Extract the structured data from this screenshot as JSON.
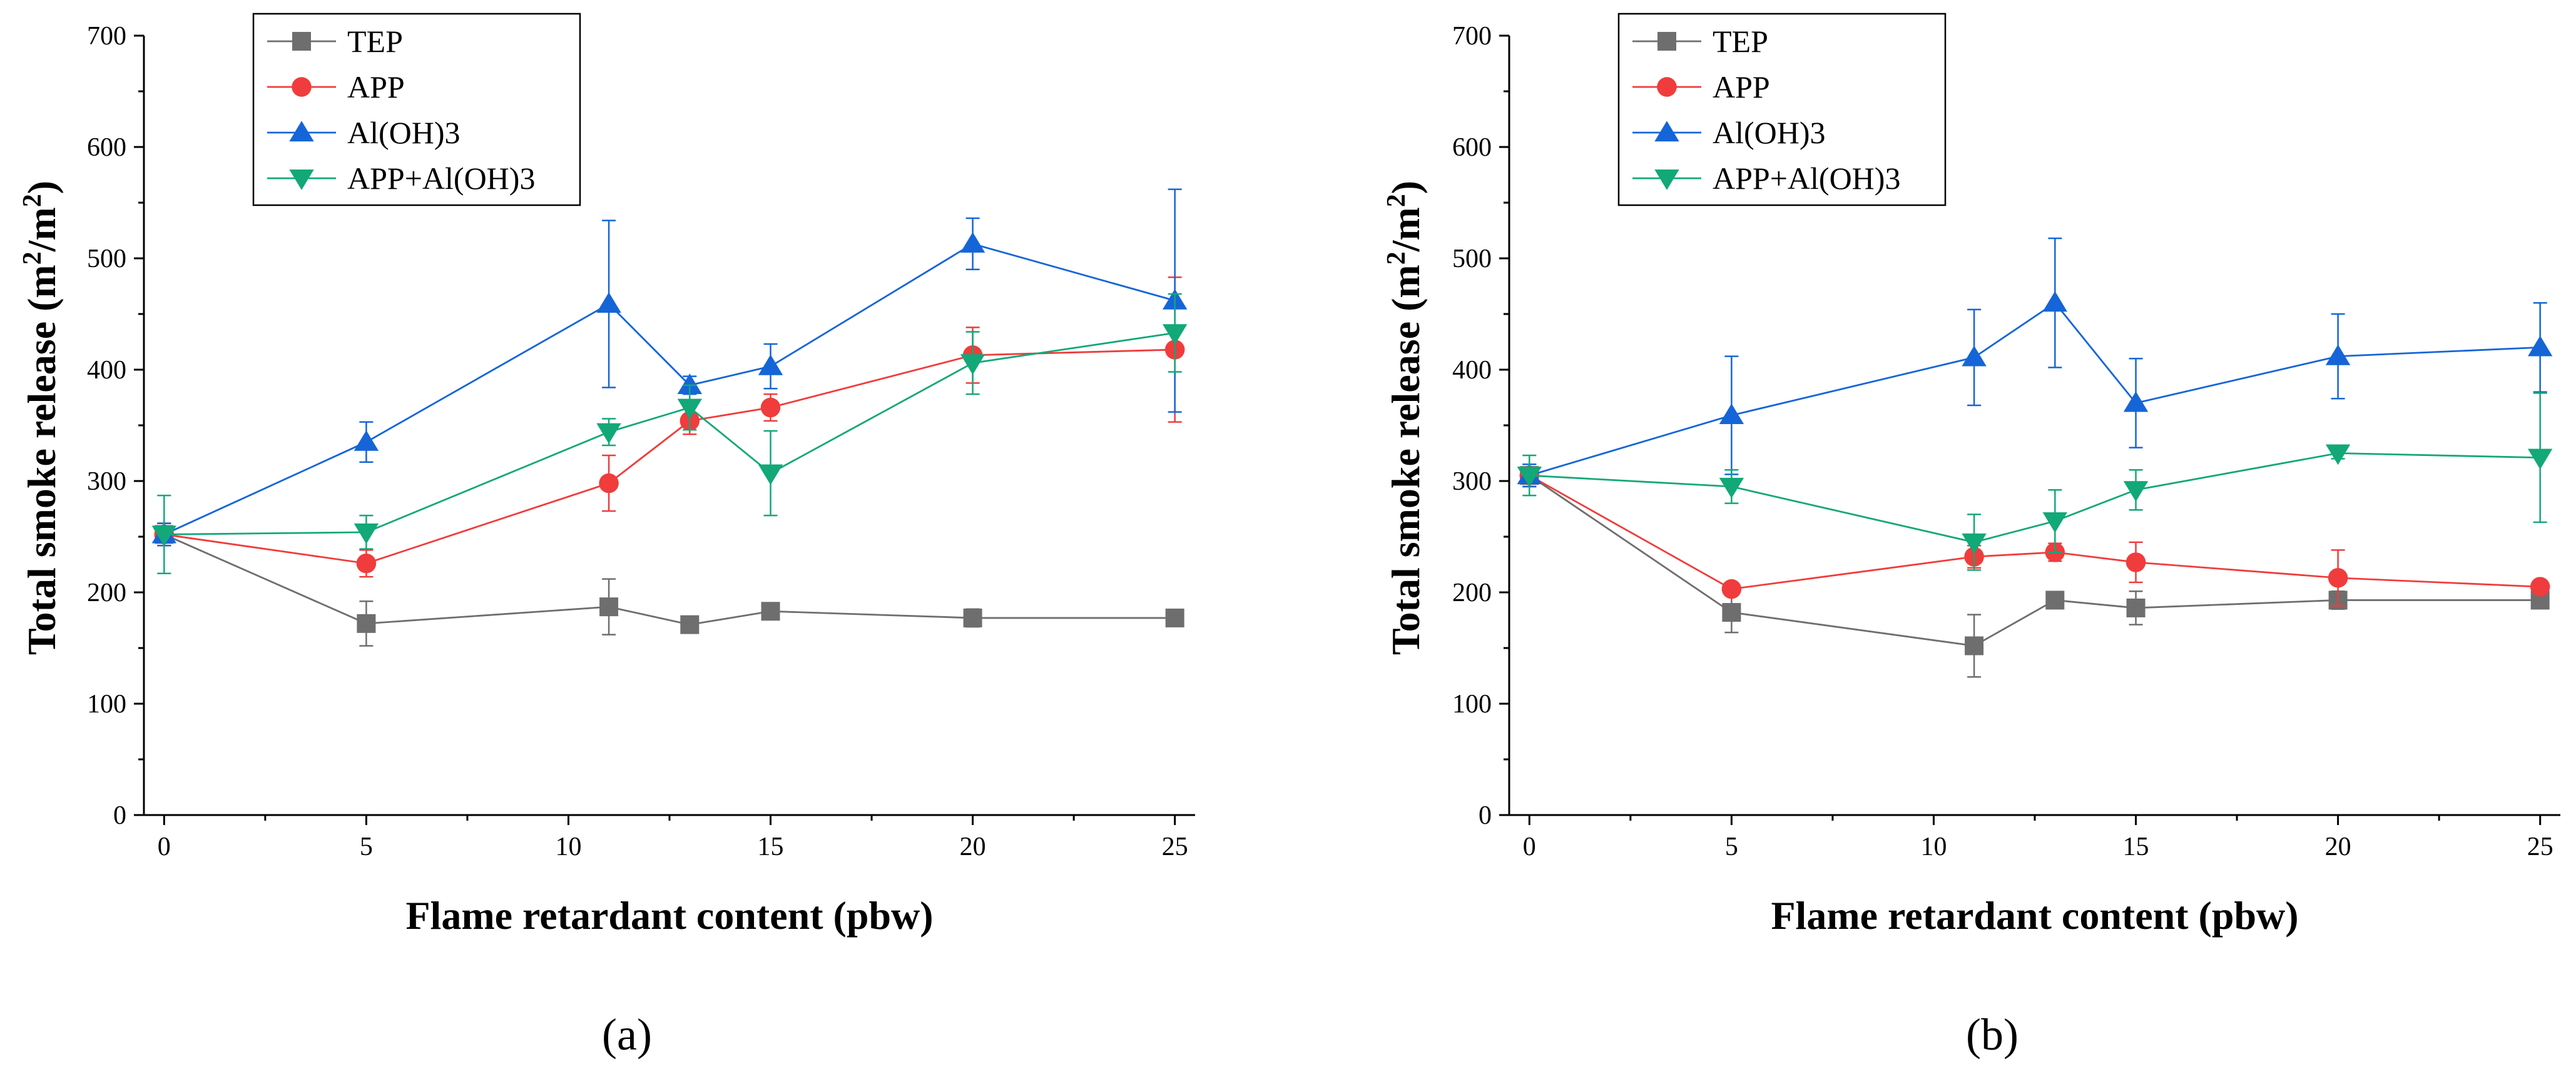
{
  "chart_data": [
    {
      "type": "line",
      "panel_label": "(a)",
      "xlabel": "Flame retardant content (pbw)",
      "ylabel_main": "Total smoke release (m",
      "ylabel_sup1": "2",
      "ylabel_mid": "/m",
      "ylabel_sup2": "2",
      "ylabel_end": ")",
      "xlim": [
        -0.5,
        25.5
      ],
      "ylim": [
        0,
        700
      ],
      "xticks": [
        "0",
        "5",
        "10",
        "15",
        "20",
        "25"
      ],
      "yticks": [
        "0",
        "100",
        "200",
        "300",
        "400",
        "500",
        "600",
        "700"
      ],
      "legend_position": "top-left",
      "x": [
        0,
        5,
        11,
        13,
        15,
        20,
        25
      ],
      "series": [
        {
          "name": "TEP",
          "color": "#6e6e6e",
          "marker": "square",
          "values": [
            252,
            172,
            187,
            171,
            183,
            177,
            177
          ],
          "errors": [
            10,
            20,
            25,
            5,
            5,
            8,
            5
          ]
        },
        {
          "name": "APP",
          "color": "#f03c3c",
          "marker": "circle",
          "values": [
            252,
            226,
            298,
            354,
            366,
            413,
            418
          ],
          "errors": [
            10,
            12,
            25,
            12,
            12,
            25,
            65
          ]
        },
        {
          "name": "Al(OH)3",
          "color": "#1565d8",
          "marker": "triangle-up",
          "values": [
            252,
            335,
            459,
            386,
            403,
            513,
            462
          ],
          "errors": [
            10,
            18,
            75,
            8,
            20,
            23,
            100
          ]
        },
        {
          "name": "APP+Al(OH)3",
          "color": "#12a878",
          "marker": "triangle-down",
          "values": [
            252,
            254,
            344,
            366,
            307,
            406,
            433
          ],
          "errors": [
            35,
            15,
            12,
            20,
            38,
            28,
            35
          ]
        }
      ]
    },
    {
      "type": "line",
      "panel_label": "(b)",
      "xlabel": "Flame retardant content (pbw)",
      "ylabel_main": "Total smoke release (m",
      "ylabel_sup1": "2",
      "ylabel_mid": "/m",
      "ylabel_sup2": "2",
      "ylabel_end": ")",
      "xlim": [
        -0.5,
        25.5
      ],
      "ylim": [
        0,
        700
      ],
      "xticks": [
        "0",
        "5",
        "10",
        "15",
        "20",
        "25"
      ],
      "yticks": [
        "0",
        "100",
        "200",
        "300",
        "400",
        "500",
        "600",
        "700"
      ],
      "legend_position": "top-left",
      "x": [
        0,
        5,
        11,
        13,
        15,
        20,
        25
      ],
      "series": [
        {
          "name": "TEP",
          "color": "#6e6e6e",
          "marker": "square",
          "values": [
            305,
            182,
            152,
            193,
            186,
            193,
            193
          ],
          "errors": [
            10,
            18,
            28,
            5,
            15,
            8,
            5
          ]
        },
        {
          "name": "APP",
          "color": "#f03c3c",
          "marker": "circle",
          "values": [
            305,
            203,
            232,
            236,
            227,
            213,
            205
          ],
          "errors": [
            10,
            5,
            10,
            8,
            18,
            25,
            5
          ]
        },
        {
          "name": "Al(OH)3",
          "color": "#1565d8",
          "marker": "triangle-up",
          "values": [
            305,
            359,
            411,
            460,
            370,
            412,
            420
          ],
          "errors": [
            10,
            53,
            43,
            58,
            40,
            38,
            40
          ]
        },
        {
          "name": "APP+Al(OH)3",
          "color": "#12a878",
          "marker": "triangle-down",
          "values": [
            305,
            295,
            245,
            264,
            292,
            325,
            321
          ],
          "errors": [
            18,
            15,
            25,
            28,
            18,
            5,
            58
          ]
        }
      ]
    }
  ]
}
